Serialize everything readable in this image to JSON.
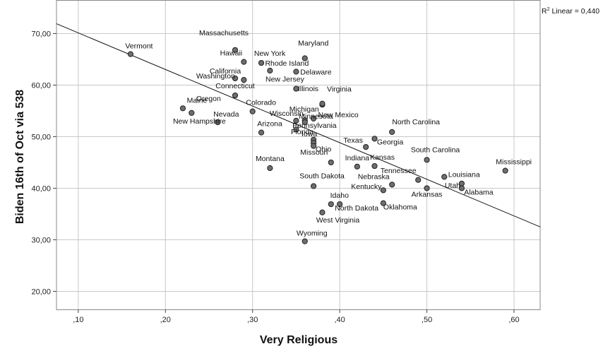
{
  "chart_data": {
    "type": "scatter",
    "title": "",
    "xlabel": "Very Religious",
    "ylabel": "Biden 16th of Oct via 538",
    "xlim": [
      0.075,
      0.63
    ],
    "ylim": [
      16.5,
      76.5
    ],
    "x_ticks": [
      0.1,
      0.2,
      0.3,
      0.4,
      0.5,
      0.6
    ],
    "x_tick_labels": [
      ",10",
      ",20",
      ",30",
      ",40",
      ",50",
      ",60"
    ],
    "y_ticks": [
      20,
      30,
      40,
      50,
      60,
      70
    ],
    "y_tick_labels": [
      "20,00",
      "30,00",
      "40,00",
      "50,00",
      "60,00",
      "70,00"
    ],
    "grid": true,
    "fit_line": {
      "label": "Linear",
      "r_squared_label": "R",
      "r_squared_value": "= 0,440",
      "x0": 0.075,
      "y0": 71.9,
      "x1": 0.63,
      "y1": 32.5
    },
    "points": [
      {
        "name": "Vermont",
        "x": 0.16,
        "y": 66.0
      },
      {
        "name": "Massachusetts",
        "x": 0.28,
        "y": 66.8
      },
      {
        "name": "Hawaii",
        "x": 0.29,
        "y": 64.5
      },
      {
        "name": "California",
        "x": 0.28,
        "y": 61.3
      },
      {
        "name": "Washington",
        "x": 0.29,
        "y": 61.0
      },
      {
        "name": "New York",
        "x": 0.31,
        "y": 64.3
      },
      {
        "name": "Rhode Island",
        "x": 0.32,
        "y": 62.8
      },
      {
        "name": "Maryland",
        "x": 0.36,
        "y": 65.2
      },
      {
        "name": "Delaware",
        "x": 0.35,
        "y": 62.6
      },
      {
        "name": "New Jersey",
        "x": 0.35,
        "y": 59.3
      },
      {
        "name": "Connecticut",
        "x": 0.28,
        "y": 58.0
      },
      {
        "name": "Maine",
        "x": 0.22,
        "y": 55.5
      },
      {
        "name": "Oregon",
        "x": 0.23,
        "y": 54.6
      },
      {
        "name": "New Hampshire",
        "x": 0.26,
        "y": 52.8
      },
      {
        "name": "Colorado",
        "x": 0.3,
        "y": 54.9
      },
      {
        "name": "Illinois",
        "x": 0.38,
        "y": 56.2
      },
      {
        "name": "Virginia",
        "x": 0.38,
        "y": 56.4
      },
      {
        "name": "New Mexico",
        "x": 0.37,
        "y": 53.5
      },
      {
        "name": "Michigan",
        "x": 0.36,
        "y": 53.2
      },
      {
        "name": "Minnesota",
        "x": 0.35,
        "y": 53.1
      },
      {
        "name": "Wisconsin",
        "x": 0.36,
        "y": 52.8
      },
      {
        "name": "Nevada",
        "x": 0.26,
        "y": 52.8
      },
      {
        "name": "Pennsylvania",
        "x": 0.35,
        "y": 51.4
      },
      {
        "name": "Arizona",
        "x": 0.31,
        "y": 50.8
      },
      {
        "name": "Florida",
        "x": 0.37,
        "y": 49.4
      },
      {
        "name": "Iowa",
        "x": 0.37,
        "y": 48.8
      },
      {
        "name": "Ohio",
        "x": 0.37,
        "y": 48.2
      },
      {
        "name": "Texas",
        "x": 0.43,
        "y": 48.0
      },
      {
        "name": "North Carolina",
        "x": 0.46,
        "y": 50.9
      },
      {
        "name": "Georgia",
        "x": 0.44,
        "y": 49.6
      },
      {
        "name": "South Carolina",
        "x": 0.5,
        "y": 45.5
      },
      {
        "name": "Missouri",
        "x": 0.39,
        "y": 45.0
      },
      {
        "name": "Indiana",
        "x": 0.42,
        "y": 44.2
      },
      {
        "name": "Kansas",
        "x": 0.44,
        "y": 44.3
      },
      {
        "name": "Montana",
        "x": 0.32,
        "y": 43.9
      },
      {
        "name": "Mississippi",
        "x": 0.59,
        "y": 43.4
      },
      {
        "name": "Louisiana",
        "x": 0.52,
        "y": 42.2
      },
      {
        "name": "Tennessee",
        "x": 0.49,
        "y": 41.6
      },
      {
        "name": "Utah",
        "x": 0.54,
        "y": 40.9
      },
      {
        "name": "Alabama",
        "x": 0.54,
        "y": 40.0
      },
      {
        "name": "Arkansas",
        "x": 0.5,
        "y": 40.0
      },
      {
        "name": "South Dakota",
        "x": 0.37,
        "y": 40.4
      },
      {
        "name": "Nebraska",
        "x": 0.46,
        "y": 40.7
      },
      {
        "name": "Kentucky",
        "x": 0.45,
        "y": 39.6
      },
      {
        "name": "Idaho",
        "x": 0.39,
        "y": 36.9
      },
      {
        "name": "North Dakota",
        "x": 0.4,
        "y": 36.9
      },
      {
        "name": "Oklahoma",
        "x": 0.45,
        "y": 37.1
      },
      {
        "name": "West Virginia",
        "x": 0.38,
        "y": 35.3
      },
      {
        "name": "Wyoming",
        "x": 0.36,
        "y": 29.7
      }
    ]
  }
}
